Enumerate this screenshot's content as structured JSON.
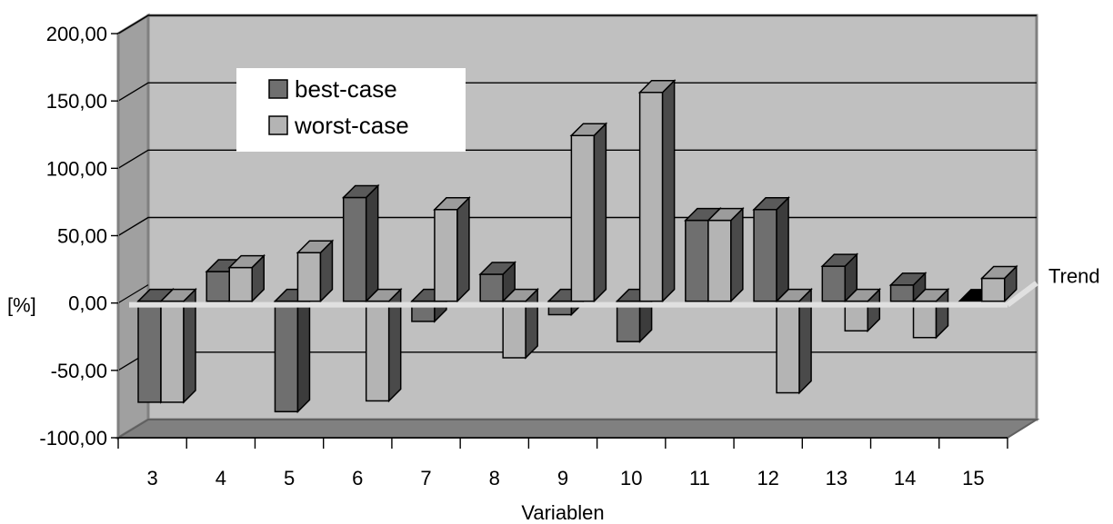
{
  "chart_data": {
    "type": "bar",
    "title": "",
    "categories": [
      "3",
      "4",
      "5",
      "6",
      "7",
      "8",
      "9",
      "10",
      "11",
      "12",
      "13",
      "14",
      "15"
    ],
    "series": [
      {
        "name": "best-case",
        "values": [
          -75,
          22,
          -82,
          77,
          -15,
          20,
          -10,
          -30,
          60,
          68,
          26,
          12,
          0
        ],
        "color": "#6f6f6f"
      },
      {
        "name": "worst-case",
        "values": [
          -75,
          25,
          36,
          -74,
          68,
          -42,
          123,
          155,
          60,
          -68,
          -22,
          -27,
          17
        ],
        "color": "#b4b4b4"
      }
    ],
    "xlabel": "Variablen",
    "ylabel": "[%]",
    "ylim": [
      -100,
      200
    ],
    "yticks": [
      "200,00",
      "150,00",
      "100,00",
      "50,00",
      "0,00",
      "-50,00",
      "-100,00"
    ],
    "ytick_values": [
      200,
      150,
      100,
      50,
      0,
      -50,
      -100
    ],
    "zero_line_label": "Trend",
    "grid": true,
    "legend_position": "top-left",
    "wall_color": "#c0c0c0",
    "floor_color": "#808080"
  }
}
